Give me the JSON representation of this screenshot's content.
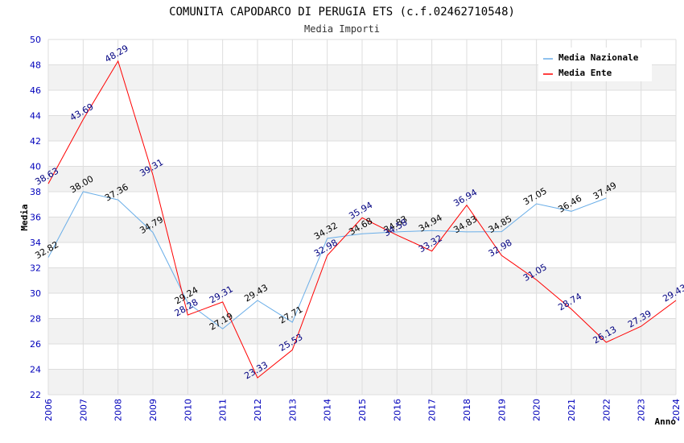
{
  "chart_data": {
    "type": "line",
    "title": "COMUNITA CAPODARCO DI PERUGIA ETS (c.f.02462710548)",
    "subtitle": "Media Importi",
    "xlabel": "Anno",
    "ylabel": "Media",
    "x": [
      "2006",
      "2007",
      "2008",
      "2009",
      "2010",
      "2011",
      "2012",
      "2013",
      "2014",
      "2015",
      "2016",
      "2017",
      "2018",
      "2019",
      "2020",
      "2021",
      "2022",
      "2023",
      "2024"
    ],
    "ylim": [
      22,
      50
    ],
    "yticks": [
      22,
      24,
      26,
      28,
      30,
      32,
      34,
      36,
      38,
      40,
      42,
      44,
      46,
      48,
      50
    ],
    "grid": true,
    "legend_position": "top-right",
    "series": [
      {
        "name": "Media Nazionale",
        "color": "#6aaee8",
        "values": [
          32.82,
          38.0,
          37.36,
          34.79,
          29.24,
          27.19,
          29.43,
          27.71,
          34.32,
          34.68,
          34.83,
          34.94,
          34.83,
          34.85,
          37.05,
          36.46,
          37.49,
          null,
          null
        ],
        "labels": [
          "32.82",
          "38.00",
          "37.36",
          "34.79",
          "29.24",
          "27.19",
          "29.43",
          "27.71",
          "34.32",
          "34.68",
          "34.83",
          "34.94",
          "34.83",
          "34.85",
          "37.05",
          "36.46",
          "37.49",
          null,
          null
        ]
      },
      {
        "name": "Media Ente",
        "color": "#ff0000",
        "values": [
          38.63,
          43.69,
          48.29,
          39.31,
          28.28,
          29.31,
          23.33,
          25.53,
          32.98,
          35.94,
          34.58,
          33.32,
          36.94,
          32.98,
          31.05,
          28.74,
          26.13,
          27.39,
          29.43
        ],
        "labels": [
          "38.63",
          "43.69",
          "48.29",
          "39.31",
          "28.28",
          "29.31",
          "23.33",
          "25.53",
          "32.98",
          "35.94",
          "34.58",
          "33.32",
          "36.94",
          "32.98",
          "31.05",
          "28.74",
          "26.13",
          "27.39",
          "29.43"
        ]
      }
    ]
  }
}
